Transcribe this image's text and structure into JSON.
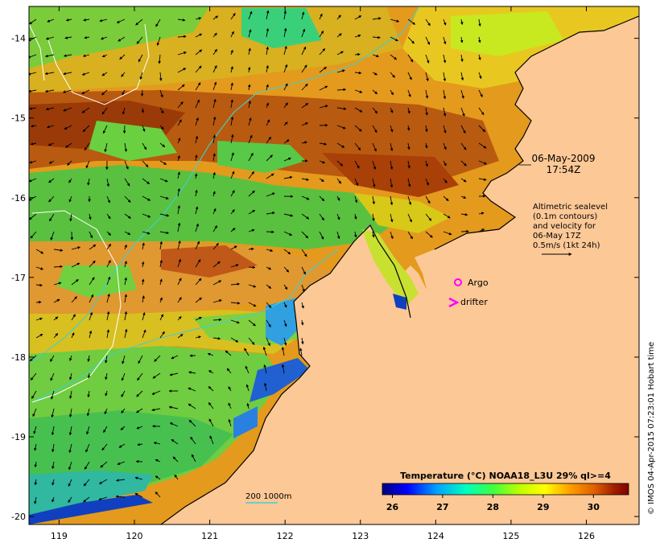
{
  "map": {
    "lat_ticks": [
      "-14",
      "-15",
      "-16",
      "-17",
      "-18",
      "-19",
      "-20"
    ],
    "lon_ticks": [
      "119",
      "120",
      "121",
      "122",
      "123",
      "124",
      "125",
      "126"
    ],
    "extent": {
      "lon_min": 118.6,
      "lon_max": 126.7,
      "lat_min": -20.1,
      "lat_max": -13.6
    },
    "colors": {
      "land": "#fcc896",
      "frame": "#000000",
      "isobath": "#40d0d0",
      "contour": "#ffffff"
    }
  },
  "annotations": {
    "timestamp_line1": "06-May-2009",
    "timestamp_line2": "17:54Z",
    "altimetry_line1": "Altimetric sealevel",
    "altimetry_line2": "(0.1m contours)",
    "altimetry_line3": "and velocity for",
    "altimetry_line4": "06-May 17Z",
    "altimetry_line5": "0.5m/s (1kt 24h)",
    "argo_label": "Argo",
    "drifter_label": "drifter",
    "isobath_label": "200 1000m",
    "credit": "© IMOS 04-Apr-2015 07:23:01 Hobart time",
    "argo_color": "#ff00ff",
    "drifter_color": "#ff00ff"
  },
  "colorbar": {
    "title": "Temperature (°C) NOAA18_L3U 29% ql>=4",
    "ticks": [
      "26",
      "27",
      "28",
      "29",
      "30"
    ],
    "range": [
      25.8,
      30.7
    ],
    "stops": [
      "#00007f",
      "#0000ff",
      "#00a0ff",
      "#00ffc0",
      "#40ff40",
      "#c0ff00",
      "#ffff00",
      "#ffa000",
      "#e06000",
      "#a02000",
      "#800000"
    ]
  }
}
